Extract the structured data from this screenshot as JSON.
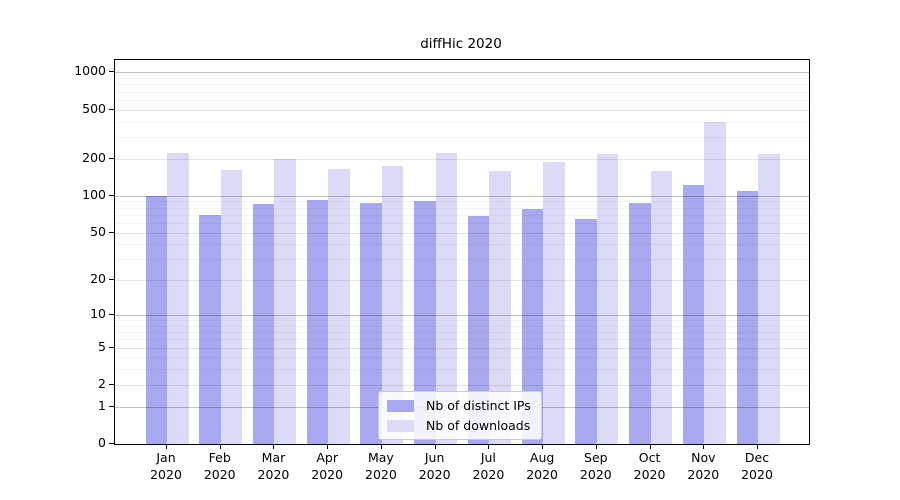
{
  "chart_data": {
    "type": "bar",
    "title": "diffHic 2020",
    "categories": [
      "Jan",
      "Feb",
      "Mar",
      "Apr",
      "May",
      "Jun",
      "Jul",
      "Aug",
      "Sep",
      "Oct",
      "Nov",
      "Dec"
    ],
    "x_year_line": "2020",
    "series": [
      {
        "name": "Nb of distinct IPs",
        "color": "#a8a8f0",
        "values": [
          99,
          70,
          86,
          93,
          88,
          91,
          69,
          78,
          65,
          88,
          123,
          110
        ]
      },
      {
        "name": "Nb of downloads",
        "color": "#dbdbf8",
        "values": [
          224,
          163,
          199,
          166,
          175,
          224,
          160,
          190,
          220,
          158,
          400,
          220
        ]
      }
    ],
    "yscale": "log10(1+x)",
    "yticks": [
      0,
      1,
      2,
      5,
      10,
      20,
      50,
      100,
      200,
      500,
      1000
    ],
    "ylim": [
      0,
      1260
    ],
    "grid": true,
    "legend_position": "bottom-center",
    "axis_color": "#000000",
    "gridline_major_color": "#c2c2c2",
    "gridline_tick_color": "#e5e5e5",
    "gridline_minor_color": "#f3f3f3"
  }
}
